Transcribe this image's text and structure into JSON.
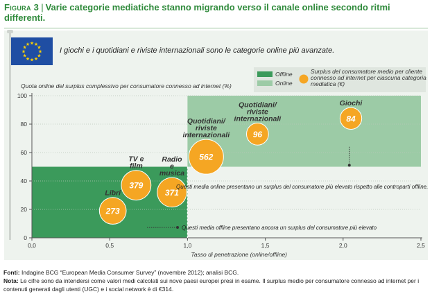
{
  "figure": {
    "label": "Figura 3",
    "title": "Varie categorie mediatiche stanno migrando verso il canale online secondo ritmi differenti.",
    "subtitle": "I giochi e i quotidiani e riviste internazionali sono le categorie online più avanzate."
  },
  "legend": {
    "offline": "Offline",
    "online": "Online",
    "bubble": [
      "Surplus del consumatore medio per cliente",
      "connesso ad internet per ciascuna categoria",
      "mediatica (€)"
    ]
  },
  "colors": {
    "offline": "#3b9a5b",
    "online": "#9ccba6",
    "bubble": "#f5a623",
    "title": "#2f8a3b",
    "panel": "#eef3ee"
  },
  "chart_data": {
    "type": "scatter",
    "xlabel": "Tasso di penetrazione (online/offline)",
    "ylabel": "Quota online del surplus complessivo per consumatore connesso ad internet (%)",
    "xlim": [
      0,
      2.5
    ],
    "ylim": [
      0,
      100
    ],
    "xticks": [
      "0,0",
      "0,5",
      "1,0",
      "1,5",
      "2,0",
      "2,5"
    ],
    "yticks": [
      "0",
      "20",
      "40",
      "60",
      "80",
      "100"
    ],
    "regions": [
      {
        "name": "Offline",
        "x": [
          0,
          1.0
        ],
        "y": [
          0,
          50
        ]
      },
      {
        "name": "Online",
        "x": [
          1.0,
          2.5
        ],
        "y": [
          50,
          100
        ]
      }
    ],
    "points": [
      {
        "label": [
          "Libri"
        ],
        "x": 0.52,
        "y": 19,
        "value": 273
      },
      {
        "label": [
          "TV e",
          "film"
        ],
        "x": 0.67,
        "y": 37,
        "value": 379
      },
      {
        "label": [
          "Radio",
          "e",
          "musica"
        ],
        "x": 0.9,
        "y": 32,
        "value": 371
      },
      {
        "label": [
          "Quotidiani/",
          "riviste",
          "internazionali"
        ],
        "x": 1.12,
        "y": 57,
        "value": 562
      },
      {
        "label": [
          "Quotidiani/",
          "riviste",
          "internazionali"
        ],
        "x": 1.45,
        "y": 73,
        "value": 96
      },
      {
        "label": [
          "Giochi"
        ],
        "x": 2.05,
        "y": 84,
        "value": 84
      }
    ],
    "annotations": [
      "Questi media online presentano un surplus del consumatore più elevato rispetto alle controparti offline.",
      "Questi media offline presentano ancora un surplus del consumatore più elevato"
    ]
  },
  "sources": {
    "label": "Fonti:",
    "text": "Indagine BCG “European Media Consumer Survey” (novembre 2012); analisi BCG.",
    "note_label": "Nota:",
    "note_text": "Le cifre sono da intendersi come valori medi calcolati sui nove paesi europei presi in esame. Il surplus medio per consumatore connesso ad internet per i contenuti generati dagli utenti (UGC) e i social network è di €314."
  }
}
